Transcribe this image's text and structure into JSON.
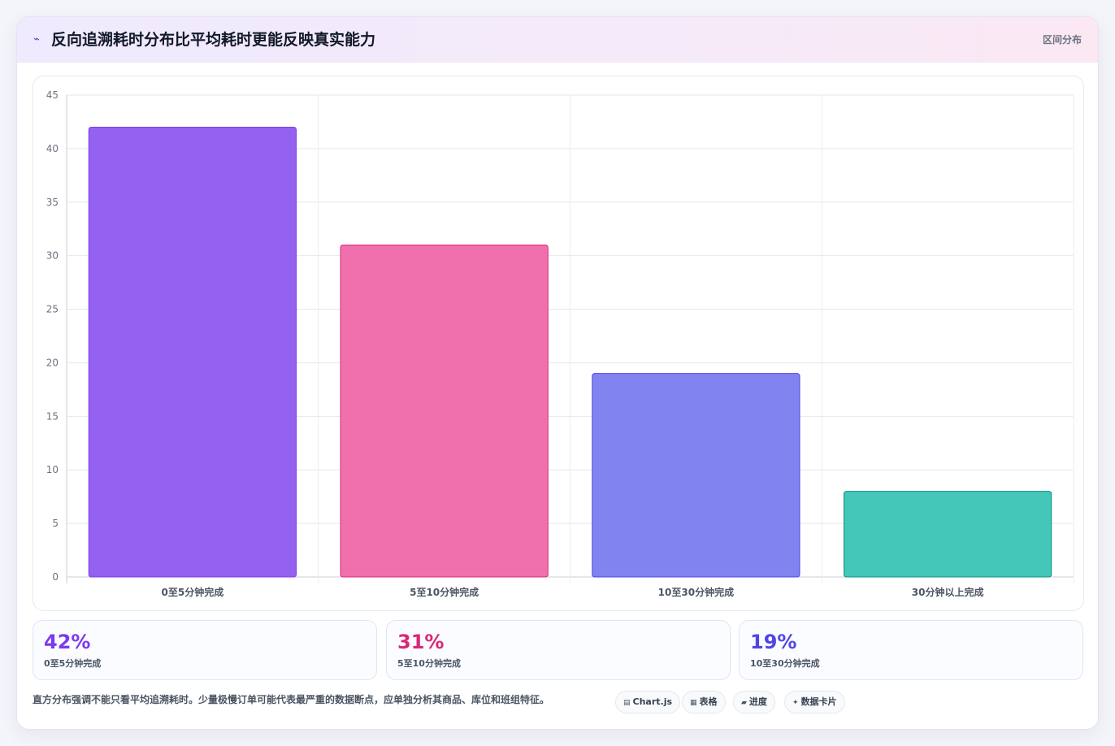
{
  "header": {
    "icon": "trend-line-icon",
    "title": "反向追溯耗时分布比平均耗时更能反映真实能力",
    "tag": "区间分布"
  },
  "chart_data": {
    "type": "bar",
    "categories": [
      "0至5分钟完成",
      "5至10分钟完成",
      "10至30分钟完成",
      "30分钟以上完成"
    ],
    "values": [
      42,
      31,
      19,
      8
    ],
    "colors": [
      "#9461f0",
      "#f070ad",
      "#8184f0",
      "#44c6b8"
    ],
    "border_colors": [
      "#7c3aed",
      "#db2777",
      "#4f46e5",
      "#0d9488"
    ],
    "ylim": [
      0,
      45
    ],
    "yticks": [
      0,
      5,
      10,
      15,
      20,
      25,
      30,
      35,
      40,
      45
    ],
    "grid": true,
    "legend": "none"
  },
  "stats": [
    {
      "value": "42%",
      "label": "0至5分钟完成",
      "color": "#7c3aed"
    },
    {
      "value": "31%",
      "label": "5至10分钟完成",
      "color": "#db2777"
    },
    {
      "value": "19%",
      "label": "10至30分钟完成",
      "color": "#4f46e5"
    }
  ],
  "footer": {
    "note": "直方分布强调不能只看平均追溯耗时。少量极慢订单可能代表最严重的数据断点，应单独分析其商品、库位和班组特征。",
    "chips": [
      {
        "icon": "chart-icon",
        "glyph": "▤",
        "label": "Chart.js"
      },
      {
        "icon": "table-icon",
        "glyph": "▦",
        "label": "表格"
      },
      {
        "icon": "progress-icon",
        "glyph": "▰",
        "label": "进度"
      },
      {
        "icon": "sparkle-icon",
        "glyph": "✦",
        "label": "数据卡片"
      }
    ]
  }
}
